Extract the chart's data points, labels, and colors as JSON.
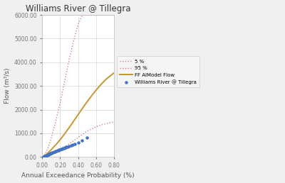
{
  "title": "Williams River @ Tillegra",
  "xlabel": "Annual Exceedance Probability (%)",
  "ylabel": "Flow (m³/s)",
  "xlim": [
    0.0,
    0.8
  ],
  "ylim": [
    0.0,
    6000.0
  ],
  "yticks": [
    0,
    1000,
    2000,
    3000,
    4000,
    5000,
    6000
  ],
  "xticks": [
    0.0,
    0.2,
    0.4,
    0.6,
    0.8
  ],
  "legend_labels": [
    "Williams River @ Tillegra",
    "FF AIModel Flow",
    "5 %",
    "95 %"
  ],
  "dot_color": "#4472C4",
  "line_color": "#C8962E",
  "ci_color": "#D4808A",
  "bg_color": "#F0F0F0",
  "plot_bg": "#FFFFFF",
  "scatter_x": [
    0.01,
    0.015,
    0.02,
    0.025,
    0.03,
    0.035,
    0.04,
    0.045,
    0.05,
    0.055,
    0.06,
    0.065,
    0.07,
    0.075,
    0.08,
    0.085,
    0.09,
    0.095,
    0.1,
    0.11,
    0.12,
    0.13,
    0.14,
    0.15,
    0.16,
    0.17,
    0.18,
    0.19,
    0.2,
    0.21,
    0.22,
    0.23,
    0.24,
    0.25,
    0.26,
    0.27,
    0.28,
    0.3,
    0.32,
    0.34,
    0.36,
    0.4,
    0.44,
    0.5
  ],
  "scatter_y": [
    10,
    15,
    20,
    25,
    30,
    38,
    45,
    55,
    65,
    75,
    85,
    95,
    105,
    115,
    125,
    135,
    145,
    155,
    165,
    180,
    195,
    210,
    225,
    240,
    255,
    270,
    285,
    295,
    310,
    325,
    340,
    355,
    370,
    385,
    400,
    415,
    435,
    460,
    490,
    520,
    550,
    620,
    700,
    820
  ],
  "curve_x": [
    0.0,
    0.01,
    0.02,
    0.04,
    0.06,
    0.08,
    0.1,
    0.15,
    0.2,
    0.25,
    0.3,
    0.35,
    0.4,
    0.45,
    0.5,
    0.55,
    0.6,
    0.65,
    0.7,
    0.75,
    0.8
  ],
  "model_y": [
    0,
    20,
    45,
    100,
    160,
    230,
    310,
    510,
    730,
    980,
    1240,
    1510,
    1790,
    2060,
    2330,
    2580,
    2820,
    3040,
    3240,
    3400,
    3550
  ],
  "ci5_y": [
    0,
    30,
    80,
    200,
    360,
    560,
    800,
    1500,
    2300,
    3200,
    4100,
    4900,
    5600,
    6000,
    6000,
    6000,
    6000,
    6000,
    6000,
    6000,
    6000
  ],
  "ci95_y": [
    0,
    8,
    18,
    40,
    65,
    95,
    130,
    220,
    320,
    430,
    550,
    680,
    820,
    960,
    1080,
    1180,
    1270,
    1340,
    1400,
    1440,
    1480
  ]
}
